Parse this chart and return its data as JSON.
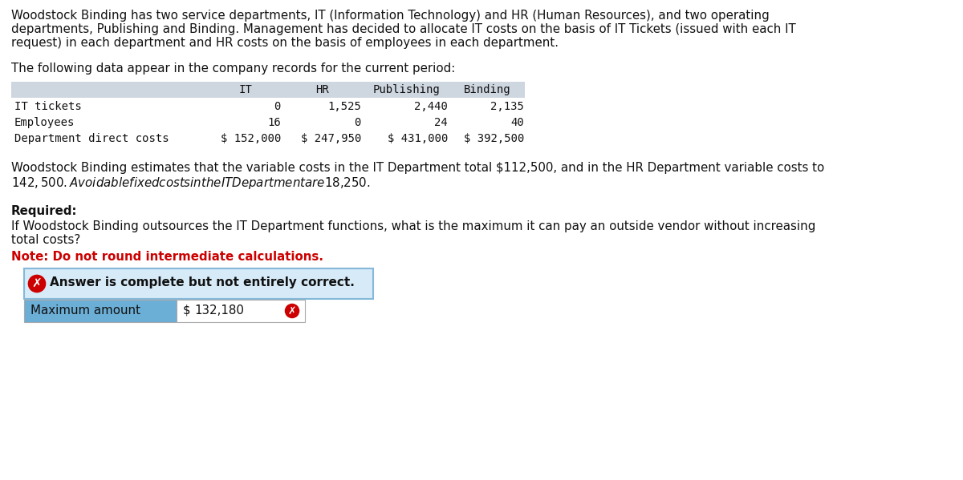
{
  "bg_color": "#ffffff",
  "para1_line1": "Woodstock Binding has two service departments, IT (Information Technology) and HR (Human Resources), and two operating",
  "para1_line2": "departments, Publishing and Binding. Management has decided to allocate IT costs on the basis of IT Tickets (issued with each IT",
  "para1_line3": "request) in each department and HR costs on the basis of employees in each department.",
  "para2": "The following data appear in the company records for the current period:",
  "table_header": [
    "IT",
    "HR",
    "Publishing",
    "Binding"
  ],
  "table_rows": [
    [
      "IT tickets",
      "0",
      "1,525",
      "2,440",
      "2,135"
    ],
    [
      "Employees",
      "16",
      "0",
      "24",
      "40"
    ],
    [
      "Department direct costs",
      "$ 152,000",
      "$ 247,950",
      "$ 431,000",
      "$ 392,500"
    ]
  ],
  "table_header_bg": "#ced6e0",
  "para3_line1": "Woodstock Binding estimates that the variable costs in the IT Department total $112,500, and in the HR Department variable costs to",
  "para3_line2": "$142,500. Avoidable fixed costs in the IT Department are $18,250.",
  "required_label": "Required:",
  "para4_line1": "If Woodstock Binding outsources the IT Department functions, what is the maximum it can pay an outside vendor without increasing",
  "para4_line2": "total costs?",
  "note_text": "Note: Do not round intermediate calculations.",
  "note_color": "#cc0000",
  "answer_box_bg": "#d6eaf8",
  "answer_box_border": "#85b8d9",
  "answer_icon_color": "#cc0000",
  "answer_text": "Answer is complete but not entirely correct.",
  "answer_row_label": "Maximum amount",
  "answer_row_dollar": "$",
  "answer_row_value": "132,180",
  "answer_row_label_bg": "#6baed6",
  "answer_row_value_bg": "#ffffff",
  "mono_font": "DejaVu Sans Mono",
  "body_font": "DejaVu Sans",
  "body_fontsize": 10.8,
  "mono_fontsize": 10.0
}
